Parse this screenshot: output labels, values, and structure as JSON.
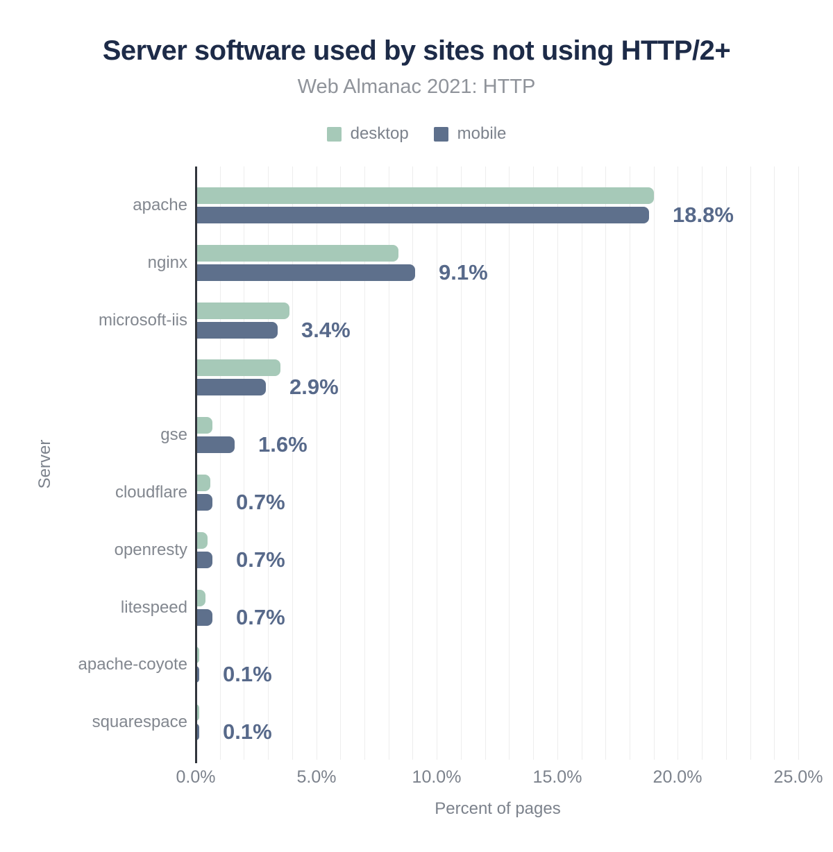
{
  "chart_data": {
    "type": "bar",
    "orientation": "horizontal",
    "title": "Server software used by sites not using HTTP/2+",
    "subtitle": "Web Almanac 2021: HTTP",
    "categories": [
      "apache",
      "nginx",
      "microsoft-iis",
      "",
      "gse",
      "cloudflare",
      "openresty",
      "litespeed",
      "apache-coyote",
      "squarespace"
    ],
    "series": [
      {
        "name": "desktop",
        "color": "#a6c9b8",
        "values": [
          19.0,
          8.4,
          3.9,
          3.5,
          0.7,
          0.6,
          0.5,
          0.4,
          0.1,
          0.1
        ]
      },
      {
        "name": "mobile",
        "color": "#5e708c",
        "values": [
          18.8,
          9.1,
          3.4,
          2.9,
          1.6,
          0.7,
          0.7,
          0.7,
          0.1,
          0.1
        ]
      }
    ],
    "value_labels": [
      "18.8%",
      "9.1%",
      "3.4%",
      "2.9%",
      "1.6%",
      "0.7%",
      "0.7%",
      "0.7%",
      "0.1%",
      "0.1%"
    ],
    "value_labels_series": "mobile",
    "xlabel": "Percent of pages",
    "ylabel": "Server",
    "xlim": [
      0,
      25
    ],
    "x_tick_values": [
      0,
      5,
      10,
      15,
      20,
      25
    ],
    "x_tick_labels": [
      "0.0%",
      "5.0%",
      "10.0%",
      "15.0%",
      "20.0%",
      "25.0%"
    ],
    "grid": "vertical minor gridlines every 1%",
    "legend_position": "top-center",
    "colors": {
      "title": "#1d2b48",
      "subtitle": "#8f939a",
      "axis_text": "#7c828c",
      "value_label": "#57698a",
      "desktop": "#a6c9b8",
      "mobile": "#5e708c"
    }
  }
}
